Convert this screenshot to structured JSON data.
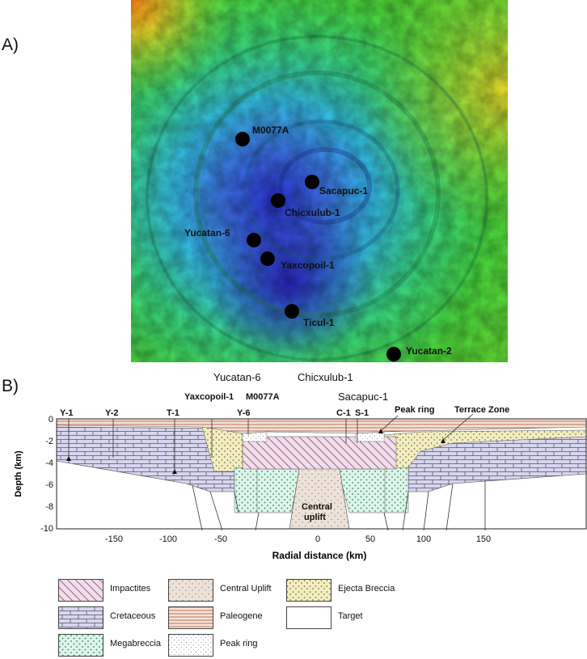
{
  "panels": {
    "a": "A)",
    "b": "B)"
  },
  "map": {
    "wells": [
      {
        "id": "m0077a",
        "label": "M0077A"
      },
      {
        "id": "sacapuc1",
        "label": "Sacapuc-1"
      },
      {
        "id": "chicxulub1",
        "label": "Chicxulub-1"
      },
      {
        "id": "yucatan6",
        "label": "Yucatan-6"
      },
      {
        "id": "yaxcopoil1",
        "label": "Yaxcopoil-1"
      },
      {
        "id": "ticul1",
        "label": "Ticul-1"
      },
      {
        "id": "yucatan2",
        "label": "Yucatan-2"
      }
    ],
    "colors": {
      "low": "#3a3fd0",
      "mid": "#2fb2dc",
      "high": "#3fd24a",
      "top": "#f0b020"
    }
  },
  "section": {
    "top_labels": {
      "yucatan6": "Yucatan-6",
      "chicxulub1": "Chicxulub-1",
      "sacapuc1": "Sacapuc-1"
    },
    "well_labels": {
      "y1": "Y-1",
      "y2": "Y-2",
      "t1": "T-1",
      "yaxcopoil1": "Yaxcopoil-1",
      "m0077a": "M0077A",
      "y6": "Y-6",
      "c1": "C-1",
      "s1": "S-1"
    },
    "annotations": {
      "peak_ring": "Peak ring",
      "terrace_zone": "Terrace Zone",
      "central_uplift_1": "Central",
      "central_uplift_2": "uplift"
    },
    "yaxis": {
      "label": "Depth (km)",
      "ticks": [
        "0",
        "-2",
        "-4",
        "-6",
        "-8",
        "-10"
      ]
    },
    "xaxis": {
      "label": "Radial distance (km)",
      "ticks": [
        "-150",
        "-100",
        "-50",
        "0",
        "50",
        "100",
        "150"
      ]
    }
  },
  "legend": [
    {
      "id": "impactites",
      "label": "Impactites"
    },
    {
      "id": "central-uplift",
      "label": "Central Uplift"
    },
    {
      "id": "ejecta-breccia",
      "label": "Ejecta Breccia"
    },
    {
      "id": "cretaceous",
      "label": "Cretaceous"
    },
    {
      "id": "paleogene",
      "label": "Paleogene"
    },
    {
      "id": "target",
      "label": "Target"
    },
    {
      "id": "megabreccia",
      "label": "Megabreccia"
    },
    {
      "id": "peak-ring",
      "label": "Peak ring"
    }
  ]
}
